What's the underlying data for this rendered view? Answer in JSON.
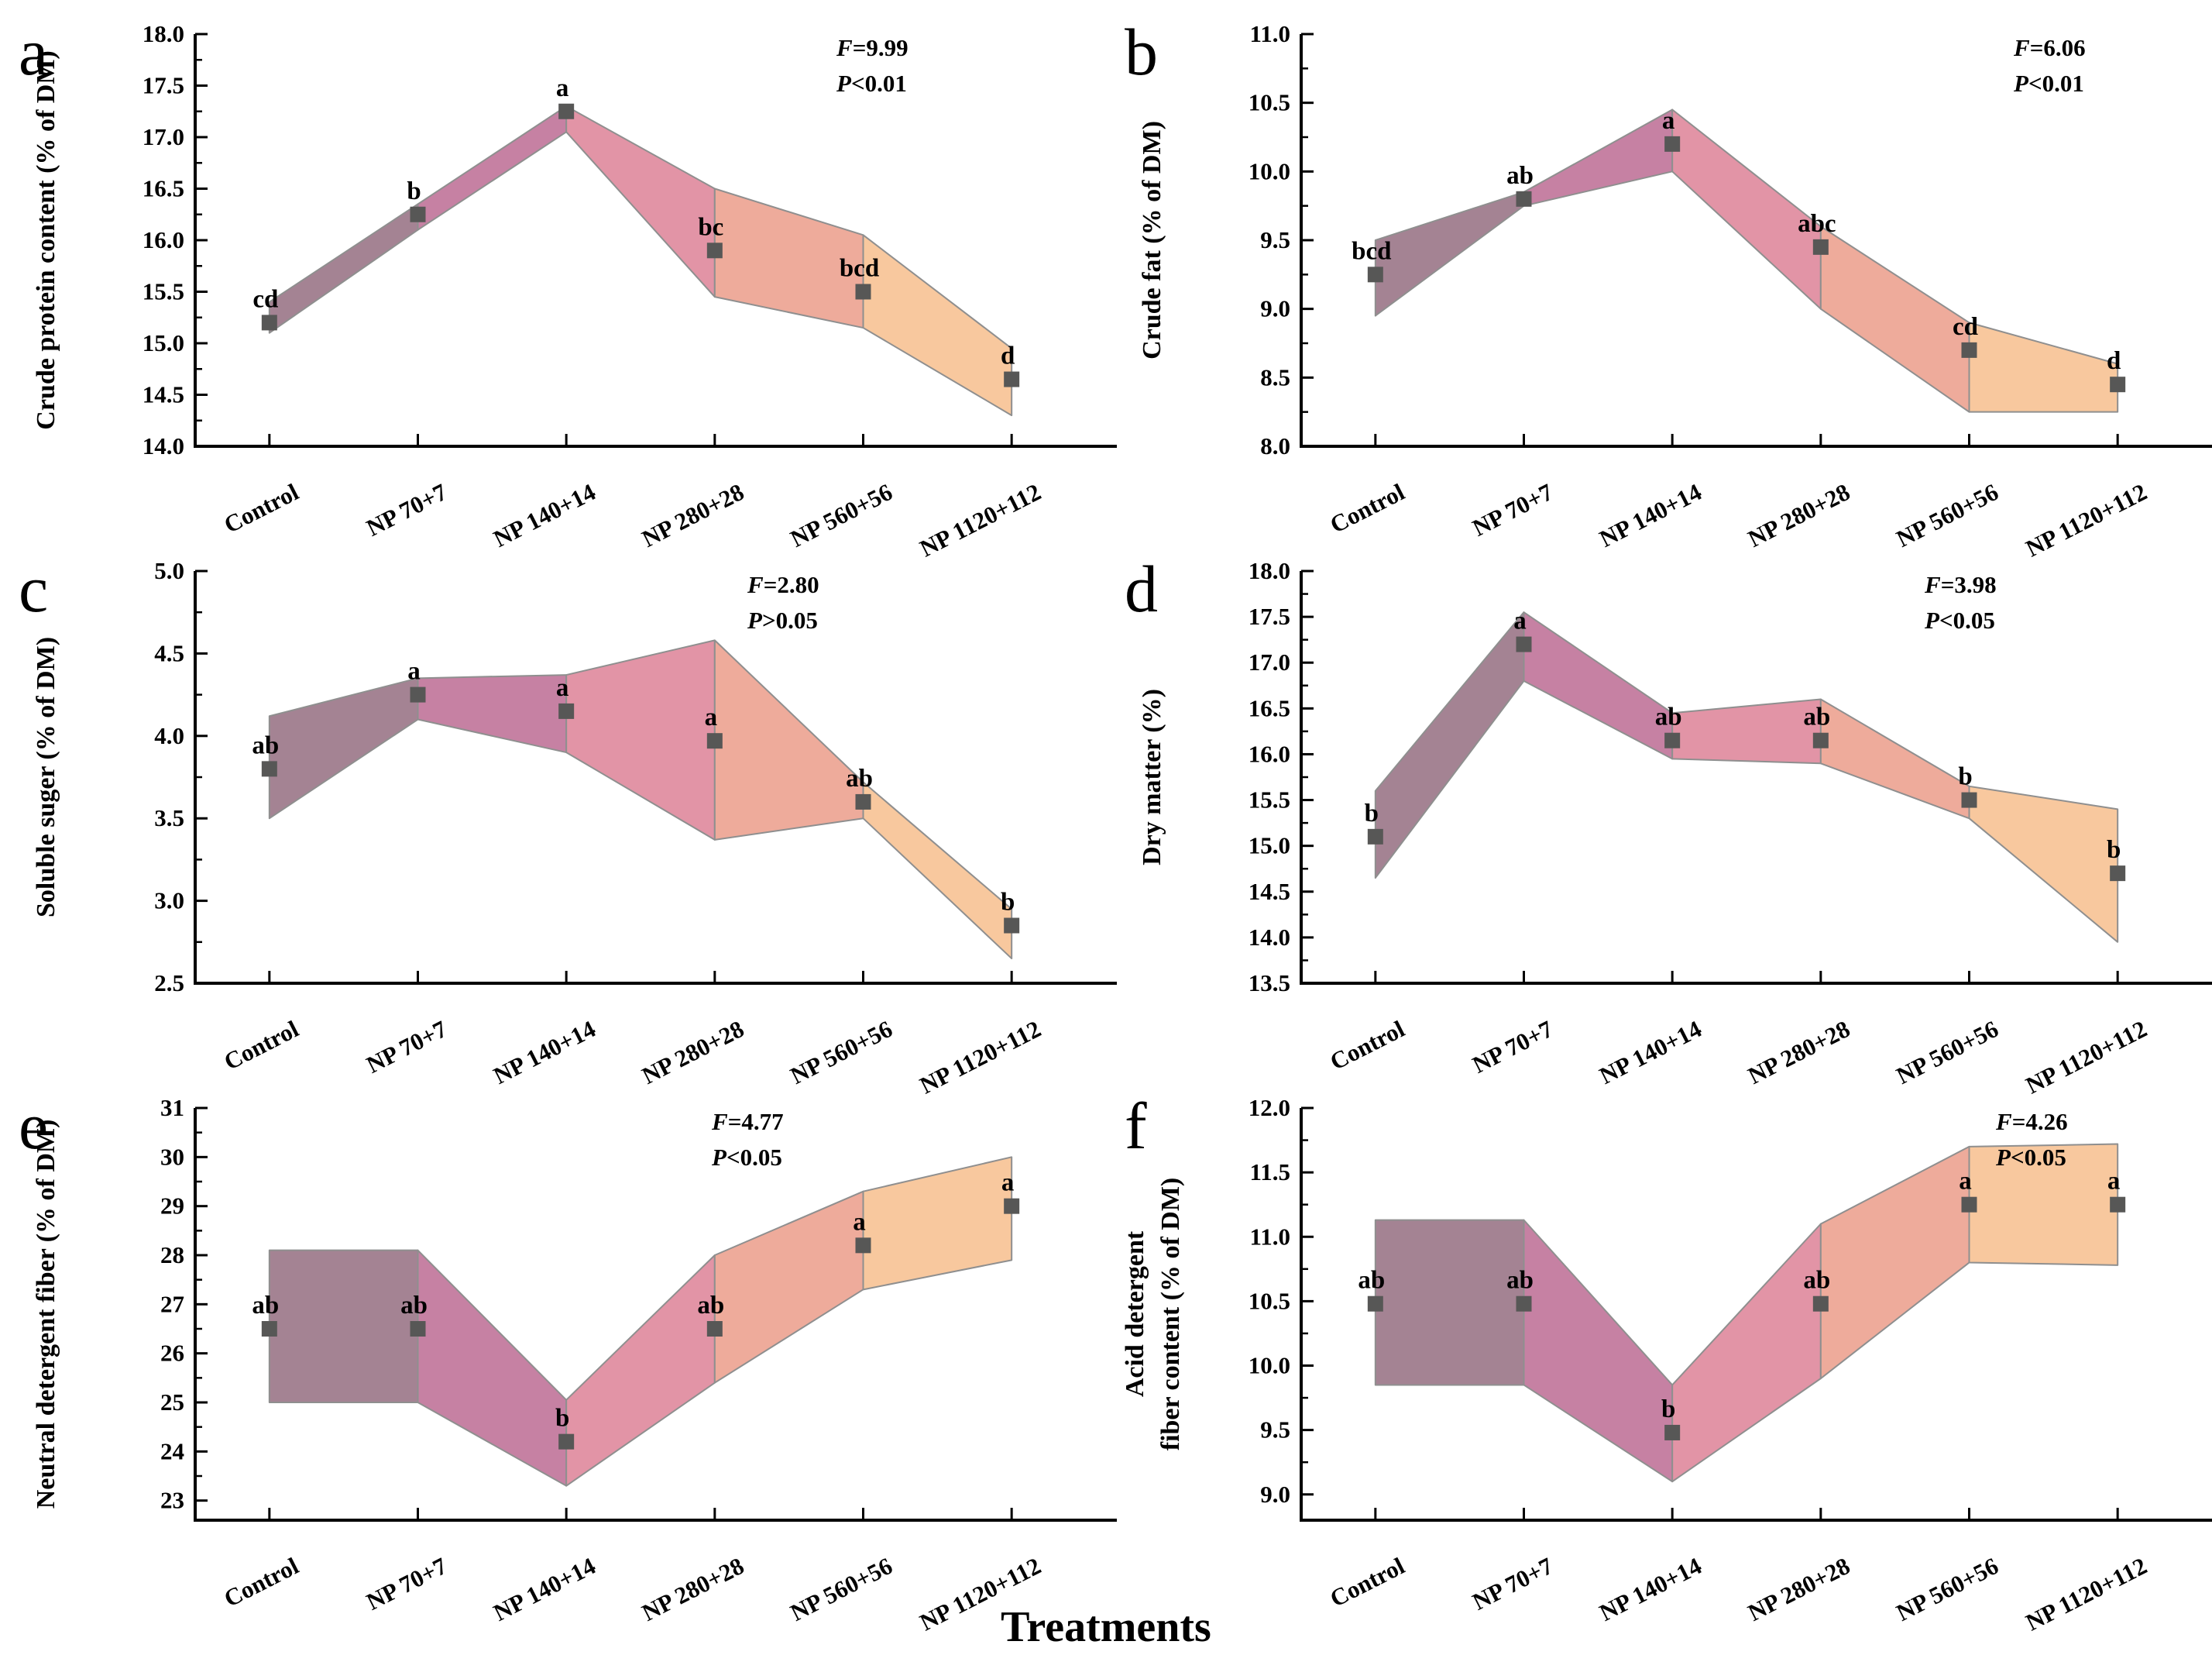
{
  "figure": {
    "xlabel": "Treatments",
    "background": "#ffffff",
    "marker_color": "#575756",
    "band_edge_color": "#8f8f8f",
    "band_colors": [
      "#a48393",
      "#c681a3",
      "#e294a6",
      "#eeab9b",
      "#f8c89e"
    ],
    "categories": [
      "Control",
      "NP 70+7",
      "NP 140+14",
      "NP 280+28",
      "NP 560+56",
      "NP 1120+112"
    ]
  },
  "chart_data": [
    {
      "panel": "a",
      "type": "area",
      "ylabel_lines": [
        "Crude protein content (% of DM)"
      ],
      "categories": [
        "Control",
        "NP 70+7",
        "NP 140+14",
        "NP 280+28",
        "NP 560+56",
        "NP 1120+112"
      ],
      "means": [
        15.2,
        16.25,
        17.25,
        15.9,
        15.5,
        14.65
      ],
      "band_low": [
        15.1,
        16.1,
        17.05,
        15.45,
        15.15,
        14.3
      ],
      "band_high": [
        15.4,
        16.35,
        17.3,
        16.5,
        16.05,
        14.95
      ],
      "letters": [
        "cd",
        "b",
        "a",
        "bc",
        "bcd",
        "d"
      ],
      "ylim": [
        14.0,
        18.0
      ],
      "ytick_start": 14.0,
      "ytick_step": 0.5,
      "ytick_decimals": 1,
      "stats": [
        [
          "F",
          "=9.99"
        ],
        [
          "P",
          "<0.01"
        ]
      ],
      "stats_x": 0.72,
      "grid": false,
      "legend": "none"
    },
    {
      "panel": "b",
      "type": "area",
      "ylabel_lines": [
        "Crude fat (% of DM)"
      ],
      "categories": [
        "Control",
        "NP 70+7",
        "NP 140+14",
        "NP 280+28",
        "NP 560+56",
        "NP 1120+112"
      ],
      "means": [
        9.25,
        9.8,
        10.2,
        9.45,
        8.7,
        8.45
      ],
      "band_low": [
        8.95,
        9.75,
        10.0,
        9.0,
        8.25,
        8.25
      ],
      "band_high": [
        9.5,
        9.85,
        10.45,
        9.6,
        8.9,
        8.6
      ],
      "letters": [
        "bcd",
        "ab",
        "a",
        "abc",
        "cd",
        "d"
      ],
      "ylim": [
        8.0,
        11.0
      ],
      "ytick_start": 8.0,
      "ytick_step": 0.5,
      "ytick_decimals": 1,
      "stats": [
        [
          "F",
          "=6.06"
        ],
        [
          "P",
          "<0.01"
        ]
      ],
      "stats_x": 0.8,
      "grid": false,
      "legend": "none"
    },
    {
      "panel": "c",
      "type": "area",
      "ylabel_lines": [
        "Soluble suger (% of DM)"
      ],
      "categories": [
        "Control",
        "NP 70+7",
        "NP 140+14",
        "NP 280+28",
        "NP 560+56",
        "NP 1120+112"
      ],
      "means": [
        3.8,
        4.25,
        4.15,
        3.97,
        3.6,
        2.85
      ],
      "band_low": [
        3.5,
        4.1,
        3.9,
        3.37,
        3.5,
        2.65
      ],
      "band_high": [
        4.12,
        4.35,
        4.37,
        4.58,
        3.72,
        2.95
      ],
      "letters": [
        "ab",
        "a",
        "a",
        "a",
        "ab",
        "b"
      ],
      "ylim": [
        2.5,
        5.0
      ],
      "ytick_start": 2.5,
      "ytick_step": 0.5,
      "ytick_decimals": 1,
      "stats": [
        [
          "F",
          "=2.80"
        ],
        [
          "P",
          ">0.05"
        ]
      ],
      "stats_x": 0.62,
      "grid": false,
      "legend": "none"
    },
    {
      "panel": "d",
      "type": "area",
      "ylabel_lines": [
        "Dry matter (%)"
      ],
      "categories": [
        "Control",
        "NP 70+7",
        "NP 140+14",
        "NP 280+28",
        "NP 560+56",
        "NP 1120+112"
      ],
      "means": [
        15.1,
        17.2,
        16.15,
        16.15,
        15.5,
        14.7
      ],
      "band_low": [
        14.65,
        16.8,
        15.95,
        15.9,
        15.3,
        13.95
      ],
      "band_high": [
        15.6,
        17.55,
        16.45,
        16.6,
        15.65,
        15.4
      ],
      "letters": [
        "b",
        "a",
        "ab",
        "ab",
        "b",
        "b"
      ],
      "ylim": [
        13.5,
        18.0
      ],
      "ytick_start": 13.5,
      "ytick_step": 0.5,
      "ytick_decimals": 1,
      "stats": [
        [
          "F",
          "=3.98"
        ],
        [
          "P",
          "<0.05"
        ]
      ],
      "stats_x": 0.7,
      "grid": false,
      "legend": "none"
    },
    {
      "panel": "e",
      "type": "area",
      "ylabel_lines": [
        "Neutral detergent fiber (% of DM)"
      ],
      "categories": [
        "Control",
        "NP 70+7",
        "NP 140+14",
        "NP 280+28",
        "NP 560+56",
        "NP 1120+112"
      ],
      "means": [
        26.5,
        26.5,
        24.2,
        26.5,
        28.2,
        29.0
      ],
      "band_low": [
        25.0,
        25.0,
        23.3,
        25.4,
        27.3,
        27.9
      ],
      "band_high": [
        28.1,
        28.1,
        25.05,
        28.0,
        29.3,
        30.0
      ],
      "letters": [
        "ab",
        "ab",
        "b",
        "ab",
        "a",
        "a"
      ],
      "ylim": [
        22.6,
        31.0
      ],
      "ytick_start": 23.0,
      "ytick_step": 1.0,
      "ytick_decimals": 0,
      "stats": [
        [
          "F",
          "=4.77"
        ],
        [
          "P",
          "<0.05"
        ]
      ],
      "stats_x": 0.58,
      "grid": false,
      "legend": "none"
    },
    {
      "panel": "f",
      "type": "area",
      "ylabel_lines": [
        "Acid detergent",
        "fiber content (% of DM)"
      ],
      "categories": [
        "Control",
        "NP 70+7",
        "NP 140+14",
        "NP 280+28",
        "NP 560+56",
        "NP 1120+112"
      ],
      "means": [
        10.48,
        10.48,
        9.48,
        10.48,
        11.25,
        11.25
      ],
      "band_low": [
        9.85,
        9.85,
        9.1,
        9.9,
        10.8,
        10.78
      ],
      "band_high": [
        11.13,
        11.13,
        9.85,
        11.1,
        11.7,
        11.72
      ],
      "letters": [
        "ab",
        "ab",
        "b",
        "ab",
        "a",
        "a"
      ],
      "ylim": [
        8.8,
        12.0
      ],
      "ytick_start": 9.0,
      "ytick_step": 0.5,
      "ytick_decimals": 1,
      "stats": [
        [
          "F",
          "=4.26"
        ],
        [
          "P",
          "<0.05"
        ]
      ],
      "stats_x": 0.78,
      "grid": false,
      "legend": "none"
    }
  ]
}
